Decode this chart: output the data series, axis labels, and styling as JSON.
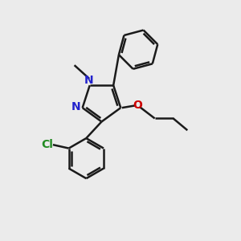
{
  "background_color": "#ebebeb",
  "bond_color": "#1a1a1a",
  "bond_width": 1.8,
  "N_color": "#2222cc",
  "O_color": "#cc0000",
  "Cl_color": "#228B22",
  "figsize": [
    3.0,
    3.0
  ],
  "dpi": 100,
  "xlim": [
    0,
    10
  ],
  "ylim": [
    0,
    10
  ]
}
